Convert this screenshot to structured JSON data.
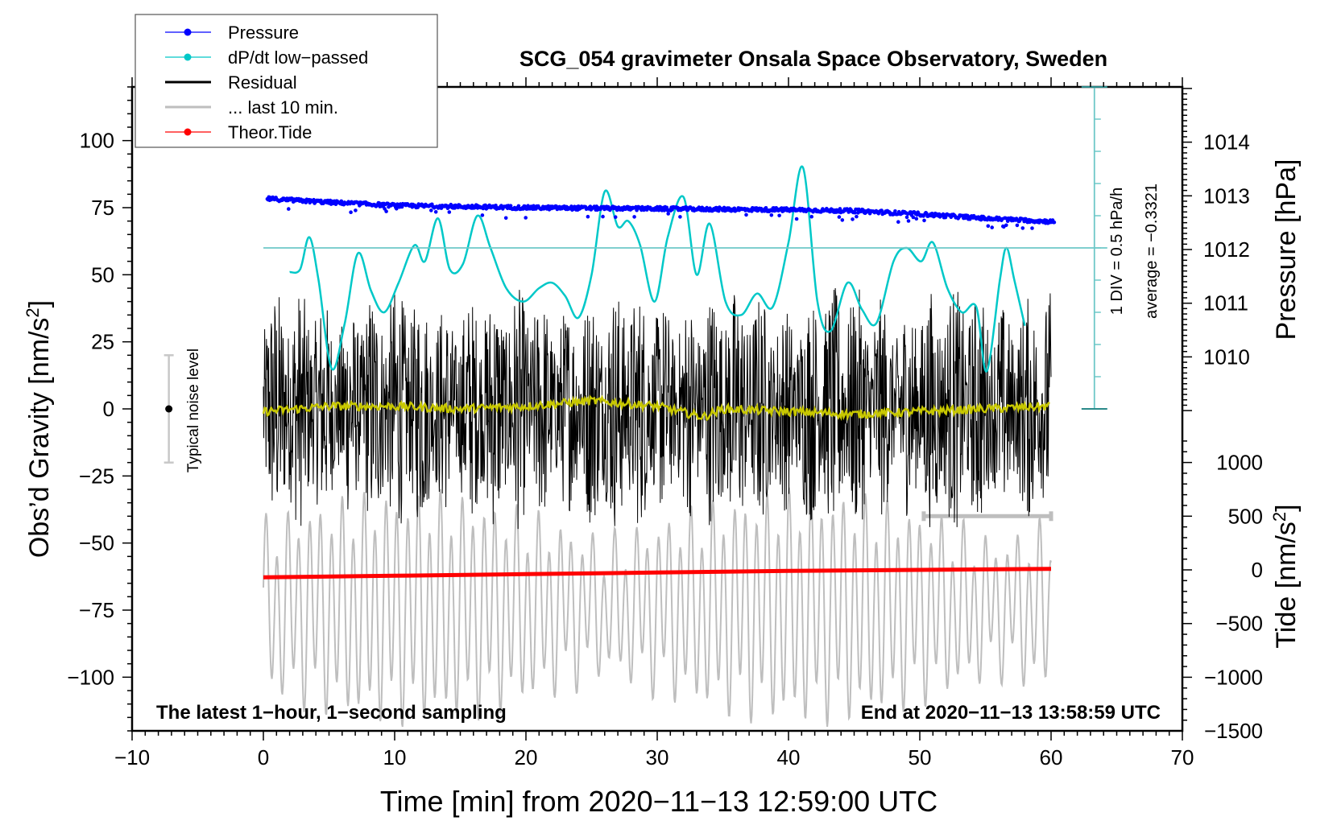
{
  "chart_data": {
    "type": "line",
    "title": "SCG_054 gravimeter Onsala Space Observatory, Sweden",
    "xlabel": "Time [min] from 2020−11−13 12:59:00 UTC",
    "ylabel_left": "Obs’d Gravity [nm/s²]",
    "ylabel_left_base": "Obs’d Gravity [nm/s",
    "ylabel_left_sup": "2",
    "ylabel_left_end": "]",
    "ylabel_right_pressure": "Pressure [hPa]",
    "ylabel_right_tide_base": "Tide [nm/s",
    "ylabel_right_tide_sup": "2",
    "ylabel_right_tide_end": "]",
    "xlim": [
      -10,
      70
    ],
    "ylim_left": [
      -120,
      120
    ],
    "ylim_right_pressure_axis_ticks": [
      "1010",
      "1011",
      "1012",
      "1013",
      "1014"
    ],
    "ylim_right_tide": [
      -1500,
      1000
    ],
    "grid": false,
    "legend_placement": "top-left",
    "x_ticks": [
      "−10",
      "0",
      "10",
      "20",
      "30",
      "40",
      "50",
      "60",
      "70"
    ],
    "x_tick_values": [
      -10,
      0,
      10,
      20,
      30,
      40,
      50,
      60,
      70
    ],
    "y_left_ticks": [
      "100",
      "75",
      "50",
      "25",
      "0",
      "−25",
      "−50",
      "−75",
      "−100"
    ],
    "y_left_tick_values": [
      100,
      75,
      50,
      25,
      0,
      -25,
      -50,
      -75,
      -100
    ],
    "y_pressure_tick_values": [
      1010,
      1011,
      1012,
      1013,
      1014
    ],
    "y_tide_ticks": [
      "1000",
      "500",
      "0",
      "−500",
      "−1000",
      "−1500"
    ],
    "y_tide_tick_values": [
      1000,
      500,
      0,
      -500,
      -1000,
      -1500
    ],
    "legend": [
      {
        "label": "Pressure",
        "color": "#0000ff",
        "marker": "dot"
      },
      {
        "label": "dP/dt low−passed",
        "color": "#00c8c8",
        "marker": "dot"
      },
      {
        "label": "Residual",
        "color": "#000000",
        "marker": "line"
      },
      {
        "label": "... last 10 min.",
        "color": "#bebebe",
        "marker": "line"
      },
      {
        "label": "Theor.Tide",
        "color": "#ff0000",
        "marker": "dot"
      }
    ],
    "annotations": {
      "bottom_left": "The latest 1−hour, 1−second sampling",
      "bottom_right": "End at 2020−11−13 13:58:59 UTC",
      "noise_label": "Typical noise level",
      "noise_level_range": [
        -20,
        20
      ],
      "dpdt_scale": "1 DIV = 0.5 hPa/h",
      "dpdt_average": "average = −0.3321"
    },
    "series": [
      {
        "name": "Pressure",
        "color": "#0000ff",
        "axis": "pressure",
        "x": [
          0,
          5,
          10,
          15,
          20,
          25,
          30,
          35,
          40,
          45,
          50,
          55,
          60
        ],
        "values": [
          1012.95,
          1012.88,
          1012.82,
          1012.8,
          1012.78,
          1012.77,
          1012.76,
          1012.75,
          1012.74,
          1012.72,
          1012.66,
          1012.58,
          1012.52
        ]
      },
      {
        "name": "dP/dt low-passed",
        "color": "#00c8c8",
        "axis": "left_equiv",
        "x": [
          2,
          2.8,
          3.5,
          4.2,
          5.2,
          6.2,
          7.2,
          8.2,
          9.2,
          10.3,
          11.5,
          12.3,
          13.3,
          14.2,
          15.2,
          16.3,
          17.3,
          18.5,
          19.8,
          21,
          22,
          23,
          24,
          25,
          26,
          27,
          27.8,
          28.7,
          29.8,
          30.8,
          32,
          33,
          34,
          35.2,
          36.4,
          37.6,
          38.8,
          40,
          41.1,
          42.2,
          43.2,
          44.5,
          45.6,
          46.7,
          48,
          49,
          50.1,
          51,
          52.1,
          53.2,
          54.3,
          55.1,
          56.1,
          56.6,
          57.2,
          58
        ],
        "values": [
          51,
          52,
          64,
          48,
          15,
          32,
          58,
          44,
          36,
          47,
          61,
          55,
          71,
          52,
          54,
          72,
          60,
          45,
          40,
          45,
          47,
          42,
          34,
          50,
          81,
          68,
          70,
          61,
          40,
          64,
          79,
          50,
          69,
          40,
          35,
          43,
          38,
          62,
          90,
          40,
          29,
          47,
          37,
          32,
          55,
          60,
          55,
          62,
          45,
          36,
          38,
          14,
          48,
          60,
          48,
          31
        ]
      },
      {
        "name": "Residual",
        "color": "#000000",
        "axis": "left",
        "x": [
          0,
          60
        ],
        "envelope_max": [
          45,
          55
        ],
        "envelope_min": [
          -55,
          -45
        ],
        "note": "1-second sampled noise, amplitude roughly ±50 nm/s²"
      },
      {
        "name": "Residual low-passed",
        "color": "#c8c800",
        "axis": "left",
        "x": [
          0,
          5,
          10,
          15,
          20,
          25,
          30,
          33.5,
          35,
          40,
          45,
          50,
          55,
          60
        ],
        "values": [
          -1,
          1,
          1,
          0,
          1,
          3,
          1,
          -3,
          0,
          -1,
          -2,
          -1,
          0,
          1
        ]
      },
      {
        "name": "... last 10 min.",
        "color": "#bebebe",
        "axis": "tide",
        "x": [
          0,
          60
        ],
        "amplitude_range": [
          -1500,
          700
        ],
        "note": "oscillatory signal drawn over the full hour (last-10-min overlay); end-of-window marker from 50 to 60 min"
      },
      {
        "name": "Theor.Tide",
        "color": "#ff0000",
        "axis": "tide",
        "x": [
          0,
          10,
          20,
          30,
          40,
          50,
          60
        ],
        "values": [
          -70,
          -55,
          -40,
          -25,
          -10,
          0,
          10
        ]
      }
    ]
  }
}
